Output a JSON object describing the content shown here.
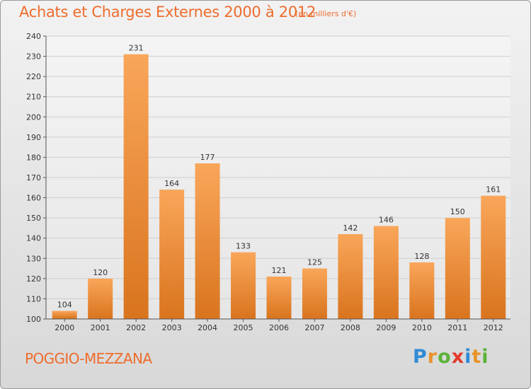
{
  "title": "Achats et Charges Externes 2000 à 2012",
  "subtitle": "(en milliers d'€)",
  "commune": "POGGIO-MEZZANA",
  "logo": {
    "letters": [
      "P",
      "r",
      "o",
      "x",
      "i",
      "t",
      "i"
    ],
    "colors": [
      "#2f8bd6",
      "#e8942a",
      "#5cb338",
      "#e23b2e",
      "#2f8bd6",
      "#e8942a",
      "#5cb338"
    ]
  },
  "colors": {
    "bar_top": "#f9a65a",
    "bar_bottom": "#d9741e",
    "text_accent": "#ee6c2c",
    "grid": "#cfcfcf"
  },
  "chart_data": {
    "type": "bar",
    "title": "Achats et Charges Externes 2000 à 2012",
    "subtitle": "(en milliers d'€)",
    "categories": [
      "2000",
      "2001",
      "2002",
      "2003",
      "2004",
      "2005",
      "2006",
      "2007",
      "2008",
      "2009",
      "2010",
      "2011",
      "2012"
    ],
    "values": [
      104,
      120,
      231,
      164,
      177,
      133,
      121,
      125,
      142,
      146,
      128,
      150,
      161
    ],
    "ylim": [
      100,
      240
    ],
    "yticks": [
      100,
      110,
      120,
      130,
      140,
      150,
      160,
      170,
      180,
      190,
      200,
      210,
      220,
      230,
      240
    ],
    "grid": true,
    "xlabel": "",
    "ylabel": ""
  }
}
